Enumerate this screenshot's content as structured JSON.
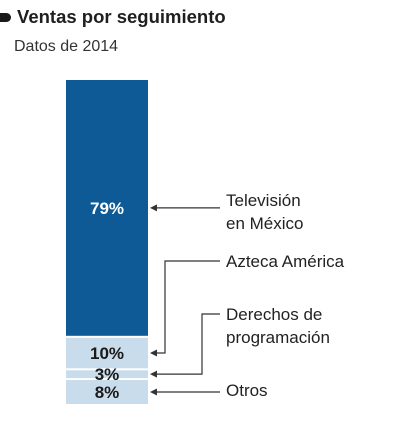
{
  "header": {
    "title": "Ventas por seguimiento",
    "subtitle": "Datos de 2014"
  },
  "chart_data": {
    "type": "bar",
    "stacked": true,
    "orientation": "vertical",
    "title": "Ventas por seguimiento",
    "subtitle": "Datos de 2014",
    "unit": "%",
    "segments": [
      {
        "name": "Televisión en México",
        "lines": [
          "Televisión",
          "en México"
        ],
        "value": 79,
        "label": "79%",
        "color": "#0d5a96",
        "label_color": "#ffffff"
      },
      {
        "name": "Azteca América",
        "lines": [
          "Azteca América"
        ],
        "value": 10,
        "label": "10%",
        "color": "#c9dcec",
        "label_color": "#1a1a1a"
      },
      {
        "name": "Derechos de programación",
        "lines": [
          "Derechos de",
          "programación"
        ],
        "value": 3,
        "label": "3%",
        "color": "#c9dcec",
        "label_color": "#1a1a1a"
      },
      {
        "name": "Otros",
        "lines": [
          "Otros"
        ],
        "value": 8,
        "label": "8%",
        "color": "#c9dcec",
        "label_color": "#1a1a1a"
      }
    ]
  }
}
